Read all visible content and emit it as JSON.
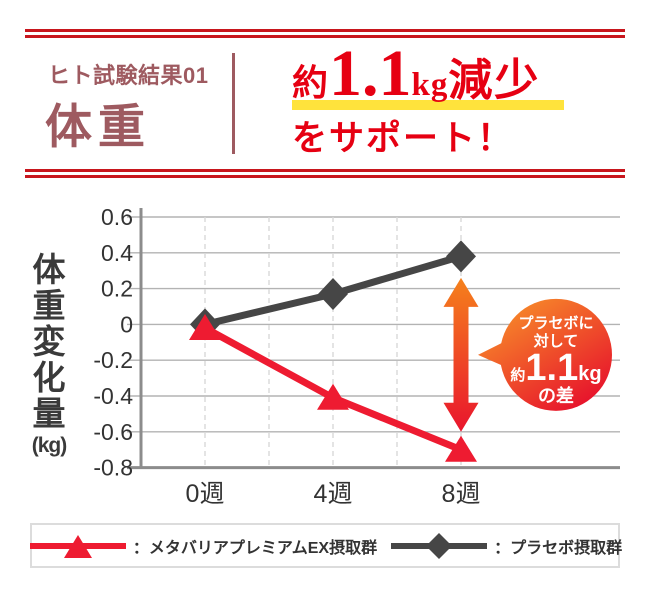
{
  "header": {
    "eyebrow": "ヒト試験結果01",
    "title": "体重",
    "headline": {
      "prefix": "約",
      "big": "1.1",
      "unit": "kg",
      "suffix": "減少",
      "line2": "をサポート！"
    }
  },
  "colors": {
    "headline_red": "#e60012",
    "header_maroon": "#9e5a60",
    "double_rule_red": "#c8161d",
    "highlight_yellow": "#ffe33c",
    "series_red": "#ee1b31",
    "series_dark": "#464646",
    "arrow_gradient_top": "#f5811c",
    "arrow_gradient_bottom": "#e9152d",
    "bubble_gradient_top": "#f78b29",
    "bubble_gradient_bottom": "#e60e2c",
    "axis_text": "#333333"
  },
  "chart_data": {
    "type": "line",
    "categories": [
      "0週",
      "4週",
      "8週"
    ],
    "series": [
      {
        "name": "メタバリアプレミアムEX摂取群",
        "marker": "triangle",
        "color": "#ee1b31",
        "values": [
          -0.02,
          -0.41,
          -0.7
        ]
      },
      {
        "name": "プラセボ摂取群",
        "marker": "diamond",
        "color": "#464646",
        "values": [
          0,
          0.17,
          0.38
        ]
      }
    ],
    "ylabel_vertical": "体重変化量",
    "ylabel_unit": "(kg)",
    "ylim": [
      -0.8,
      0.6
    ],
    "ytick_step": 0.2,
    "ytick_labels": [
      "0.6",
      "0.4",
      "0.2",
      "0",
      "-0.2",
      "-0.4",
      "-0.6",
      "-0.8"
    ],
    "grid": true,
    "legend_position": "bottom",
    "annotation": {
      "arrow": {
        "category_index": 2,
        "from": 0.26,
        "to": -0.6
      },
      "bubble_lines": [
        "プラセボに",
        "対して"
      ],
      "bubble_value_prefix": "約",
      "bubble_value": "1.1",
      "bubble_value_unit": "kg",
      "bubble_suffix": "の差"
    }
  },
  "legend": [
    {
      "label": "：メタバリアプレミアムEX摂取群",
      "marker": "triangle",
      "color": "#ee1b31"
    },
    {
      "label": "：プラセボ摂取群",
      "marker": "diamond",
      "color": "#464646"
    }
  ]
}
